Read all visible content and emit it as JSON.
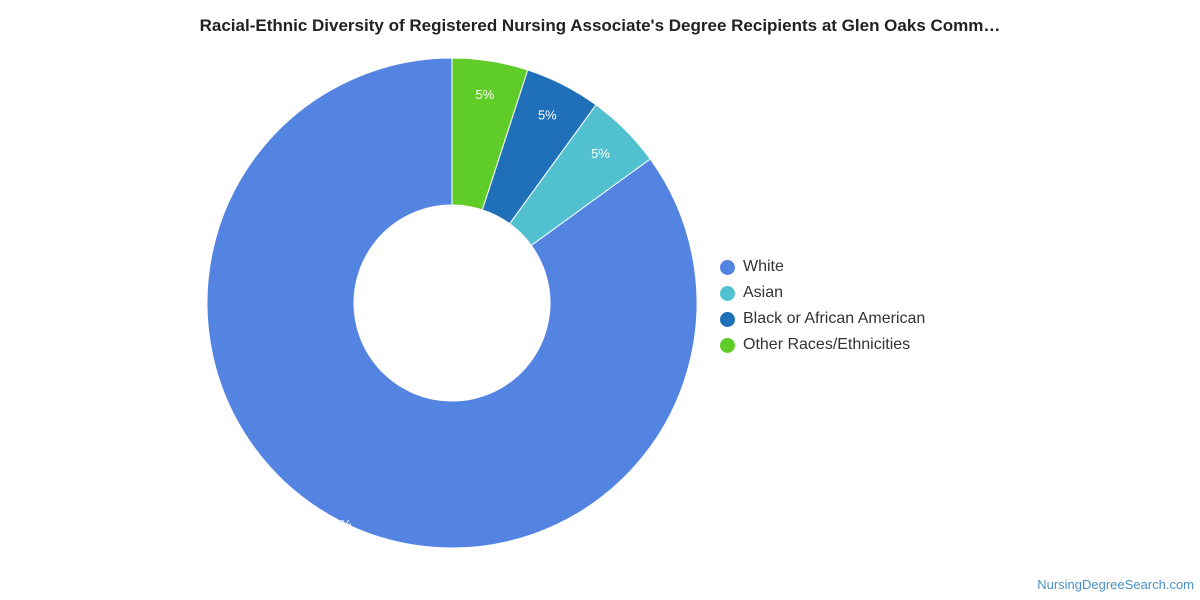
{
  "chart_data": {
    "type": "pie",
    "title": "Racial-Ethnic Diversity of Registered Nursing Associate's Degree Recipients at Glen Oaks Comm…",
    "donut": true,
    "legend_position": "right",
    "slices": [
      {
        "label": "White",
        "value": 85,
        "display": "85%",
        "color": "#5484e2"
      },
      {
        "label": "Asian",
        "value": 5,
        "display": "5%",
        "color": "#52c1cf"
      },
      {
        "label": "Black or African American",
        "value": 5,
        "display": "5%",
        "color": "#1f70b8"
      },
      {
        "label": "Other Races/Ethnicities",
        "value": 5,
        "display": "5%",
        "color": "#5fcc27"
      }
    ]
  },
  "footer": {
    "source": "NursingDegreeSearch.com"
  }
}
